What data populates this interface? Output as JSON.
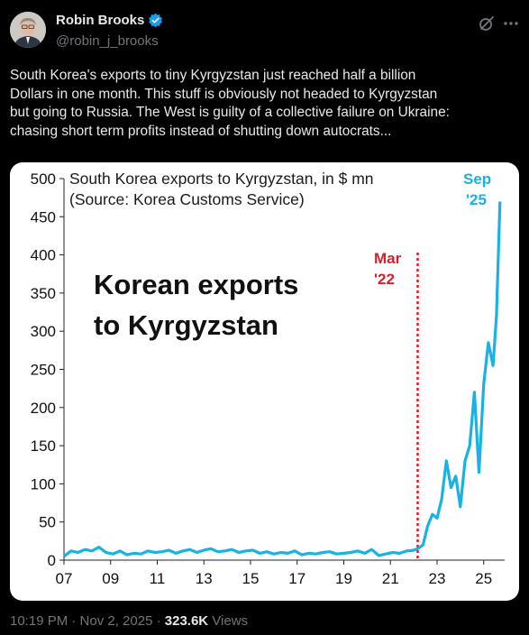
{
  "author": {
    "name": "Robin Brooks",
    "handle": "@robin_j_brooks",
    "verified": true,
    "verified_color": "#1d9bf0"
  },
  "icons": {
    "grok": "grok-icon",
    "more": "more-options-icon",
    "verified": "verified-badge-icon"
  },
  "tweet": {
    "text": "South Korea's exports to tiny Kyrgyzstan just reached half a billion\nDollars in one month. This stuff is obviously not headed to Kyrgyzstan\nbut going to Russia. The West is guilty of a collective failure on Ukraine:\nchasing short term profits instead of shutting down autocrats..."
  },
  "footer": {
    "time": "10:19 PM · Nov 2, 2025 · ",
    "views_count": "323.6K",
    "views_label": " Views"
  },
  "chart_data": {
    "type": "line",
    "title": "South Korea exports to Kyrgyzstan, in $ mn",
    "subtitle": "(Source: Korea Customs Service)",
    "annotation_main": [
      "Korean exports",
      "to Kyrgyzstan"
    ],
    "annotation_mar": [
      "Mar",
      "'22"
    ],
    "annotation_sep": [
      "Sep",
      "'25"
    ],
    "marker_x": 2022.17,
    "xlim": [
      2007,
      2025.9
    ],
    "ylim": [
      0,
      500
    ],
    "x_ticks": [
      7,
      9,
      11,
      13,
      15,
      17,
      19,
      21,
      23,
      25
    ],
    "x_tick_labels": [
      "07",
      "09",
      "11",
      "13",
      "15",
      "17",
      "19",
      "21",
      "23",
      "25"
    ],
    "y_ticks": [
      0,
      50,
      100,
      150,
      200,
      250,
      300,
      350,
      400,
      450,
      500
    ],
    "grid": false,
    "colors": {
      "series": "#19b2e4",
      "marker": "#d6202a",
      "sep_label": "#19b2e4"
    },
    "series": [
      {
        "x": [
          2007.0,
          2007.3,
          2007.6,
          2007.9,
          2008.2,
          2008.5,
          2008.8,
          2009.1,
          2009.4,
          2009.7,
          2010.0,
          2010.3,
          2010.6,
          2010.9,
          2011.2,
          2011.5,
          2011.8,
          2012.1,
          2012.4,
          2012.7,
          2013.0,
          2013.3,
          2013.6,
          2013.9,
          2014.2,
          2014.5,
          2014.8,
          2015.1,
          2015.4,
          2015.7,
          2016.0,
          2016.3,
          2016.6,
          2016.9,
          2017.2,
          2017.5,
          2017.8,
          2018.1,
          2018.4,
          2018.7,
          2019.0,
          2019.3,
          2019.6,
          2019.9,
          2020.2,
          2020.5,
          2020.8,
          2021.1,
          2021.4,
          2021.7,
          2022.0,
          2022.17,
          2022.4,
          2022.6,
          2022.8,
          2023.0,
          2023.2,
          2023.4,
          2023.6,
          2023.8,
          2024.0,
          2024.2,
          2024.4,
          2024.6,
          2024.8,
          2025.0,
          2025.2,
          2025.4,
          2025.55,
          2025.7
        ],
        "y": [
          5,
          12,
          10,
          14,
          12,
          17,
          10,
          8,
          12,
          7,
          9,
          8,
          12,
          10,
          11,
          13,
          9,
          12,
          14,
          10,
          13,
          15,
          11,
          12,
          14,
          10,
          12,
          13,
          9,
          11,
          8,
          10,
          9,
          12,
          7,
          9,
          8,
          10,
          11,
          8,
          9,
          10,
          12,
          9,
          14,
          6,
          8,
          10,
          9,
          12,
          13,
          15,
          20,
          45,
          60,
          55,
          80,
          130,
          95,
          110,
          70,
          130,
          150,
          220,
          115,
          230,
          285,
          255,
          320,
          470
        ]
      }
    ]
  }
}
